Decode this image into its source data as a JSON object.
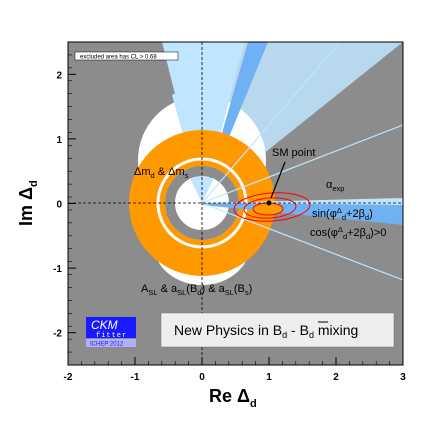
{
  "chart_data": {
    "type": "contour",
    "xlabel": "Re Δ",
    "xlabel_sub": "d",
    "ylabel": "Im Δ",
    "ylabel_sub": "d",
    "xlim": [
      -2,
      3
    ],
    "ylim": [
      -2.5,
      2.5
    ],
    "x_ticks": [
      "-2",
      "-1",
      "0",
      "1",
      "2",
      "3"
    ],
    "y_ticks": [
      "-2",
      "-1",
      "0",
      "1",
      "2"
    ],
    "sm_point": {
      "x": 1.0,
      "y": 0.0,
      "label": "SM point"
    },
    "best_fit_region": {
      "x": 1.05,
      "y": -0.08
    },
    "constraints": [
      {
        "name": "Δm_d & Δm_s",
        "kind": "annulus",
        "color": "#ff9900",
        "center": [
          0,
          0
        ],
        "r_inner": 0.7,
        "r_outer": 1.0
      },
      {
        "name": "A_SL & a_SL(B_d) & a_SL(B_s)",
        "kind": "circle",
        "color": "#ffffff",
        "center": [
          0.0,
          0.65
        ],
        "radius": 0.95
      },
      {
        "name": "sin(φΔ_d+2β_d)",
        "kind": "wedge",
        "color": "#6fb1f2"
      },
      {
        "name": "cos(φΔ_d+2β_d)>0",
        "kind": "halfplane",
        "color": "#6fb1f2"
      },
      {
        "name": "α_exp",
        "kind": "wedge",
        "color": "#bfe5ff"
      }
    ],
    "legend_note": "excluded area has CL > 0.68",
    "ellipses_cl": [
      "1σ",
      "2σ",
      "3σ"
    ]
  },
  "labels": {
    "dm": "Δm",
    "dm_sub1": "d",
    "dm_mid": " & Δm",
    "dm_sub2": "s",
    "sm": "SM point",
    "alpha": "α",
    "alpha_sub": "exp",
    "sin_a": "sin(φ",
    "sin_sup": "Δ",
    "sin_sub": "d",
    "sin_b": "+2β",
    "sin_sub2": "d",
    "sin_c": ")",
    "cos_a": "cos(φ",
    "cos_sup": "Δ",
    "cos_sub": "d",
    "cos_b": "+2β",
    "cos_sub2": "d",
    "cos_c": ")>0",
    "asl_a": "A",
    "asl_sub1": "SL",
    "asl_b": " & a",
    "asl_sub2": "SL",
    "asl_c": "(B",
    "asl_sub3": "d",
    "asl_d": ") & a",
    "asl_sub4": "SL",
    "asl_e": "(B",
    "asl_sub5": "s",
    "asl_f": ")",
    "excl": "excluded area has CL > 0.68",
    "np_a": "New Physics in B",
    "np_sub1": "d",
    "np_b": " - B",
    "np_sub2": "d",
    "np_c": " mixing",
    "ckm_top": "CKM",
    "ckm_mid": "fitter",
    "ckm_conf": "ICHEP 2012"
  },
  "colors": {
    "excluded": "#8c8c8c",
    "dm_ring": "#ff9900",
    "asl": "#ffffff",
    "phase": "#6fb1f2",
    "alpha": "#bfe5ff",
    "ellipse": "#ff0000",
    "ckm_blue": "#1a1aff"
  }
}
